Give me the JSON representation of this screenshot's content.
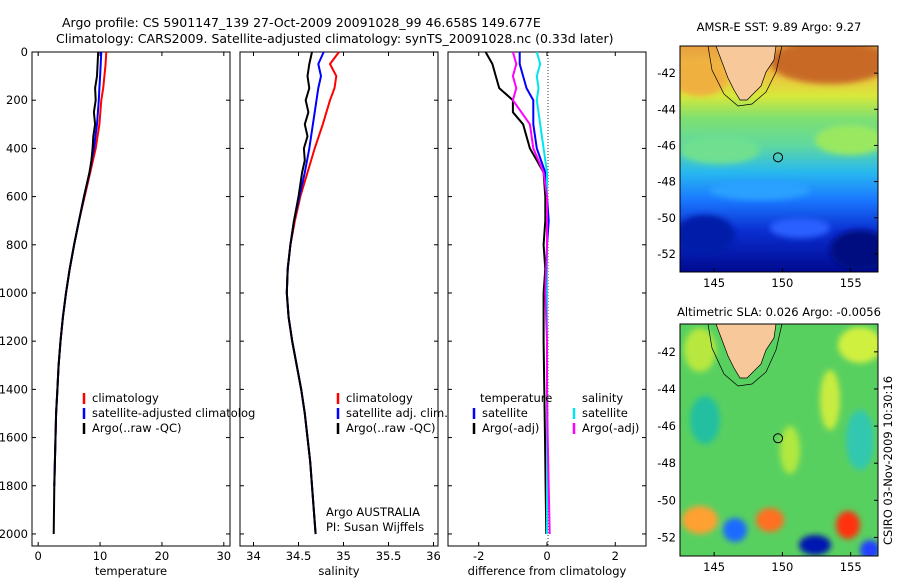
{
  "title_line1": "Argo profile: CS 5901147_139 27-Oct-2009 20091028_99 46.658S 149.677E",
  "title_line2": "Climatology: CARS2009. Satellite-adjusted climatology: synTS_20091028.nc (0.33d later)",
  "watermark": "CSIRO 03-Nov-2009 10:30:16",
  "colors": {
    "climatology": "#ff0000",
    "satellite": "#0000ff",
    "argo": "#000000",
    "sat_sal": "#00e5ee",
    "argo_sal": "#ff00ff"
  },
  "chart_data": [
    {
      "type": "line",
      "xlabel": "temperature",
      "xlim": [
        -1,
        31
      ],
      "ylim": [
        0,
        2050
      ],
      "xticks": [
        "0",
        "10",
        "20",
        "30"
      ],
      "yticks": [
        "0",
        "200",
        "400",
        "600",
        "800",
        "1000",
        "1200",
        "1400",
        "1600",
        "1800",
        "2000"
      ],
      "legend": [
        "climatology",
        "satellite-adjusted climatolog",
        "Argo(..raw -QC)"
      ],
      "series": [
        {
          "name": "climatology",
          "y": [
            0,
            50,
            100,
            150,
            200,
            300,
            400,
            500,
            600,
            700,
            800,
            900,
            1000,
            1100,
            1200,
            1300,
            1400,
            1500,
            1600,
            1700,
            1800
          ],
          "x": [
            11.0,
            10.9,
            10.7,
            10.5,
            10.2,
            9.9,
            9.3,
            8.4,
            7.5,
            6.6,
            5.8,
            5.1,
            4.5,
            4.0,
            3.6,
            3.3,
            3.1,
            2.9,
            2.8,
            2.7,
            2.6
          ]
        },
        {
          "name": "satellite-adjusted climatolog",
          "y": [
            0,
            50,
            100,
            150,
            200,
            300,
            400,
            500,
            600,
            700,
            800,
            900,
            1000,
            1100,
            1200,
            1300,
            1400,
            1500,
            1600,
            1700,
            1800
          ],
          "x": [
            10.2,
            10.1,
            10.0,
            9.9,
            9.8,
            9.5,
            9.0,
            8.3,
            7.4,
            6.6,
            5.8,
            5.1,
            4.5,
            4.0,
            3.6,
            3.3,
            3.1,
            2.9,
            2.8,
            2.7,
            2.6
          ]
        },
        {
          "name": "Argo(..raw -QC)",
          "y": [
            0,
            50,
            100,
            150,
            200,
            250,
            300,
            350,
            400,
            450,
            500,
            600,
            700,
            800,
            900,
            1000,
            1100,
            1200,
            1300,
            1400,
            1500,
            1600,
            1700,
            1800,
            1900,
            2000
          ],
          "x": [
            9.7,
            9.6,
            9.5,
            9.2,
            9.3,
            9.0,
            9.2,
            8.9,
            8.8,
            8.6,
            8.3,
            7.4,
            6.6,
            5.8,
            5.1,
            4.5,
            4.0,
            3.6,
            3.3,
            3.1,
            2.9,
            2.8,
            2.7,
            2.6,
            2.55,
            2.5
          ]
        }
      ]
    },
    {
      "type": "line",
      "xlabel": "salinity",
      "xlim": [
        33.85,
        36.05
      ],
      "ylim": [
        0,
        2050
      ],
      "xticks": [
        "34",
        "34.5",
        "35",
        "35.5",
        "36"
      ],
      "legend": [
        "climatology",
        "satellite adj. clim.",
        "Argo(..raw -QC)"
      ],
      "annotation": [
        "Argo AUSTRALIA",
        "PI: Susan Wijffels"
      ],
      "series": [
        {
          "name": "climatology",
          "y": [
            0,
            50,
            100,
            150,
            200,
            300,
            400,
            500,
            600,
            700,
            800,
            900,
            1000,
            1100,
            1200,
            1300,
            1400,
            1500,
            1600,
            1700,
            1800,
            1900,
            2000
          ],
          "x": [
            34.95,
            34.85,
            34.92,
            34.9,
            34.85,
            34.77,
            34.68,
            34.6,
            34.52,
            34.46,
            34.41,
            34.38,
            34.37,
            34.39,
            34.43,
            34.48,
            34.53,
            34.57,
            34.6,
            34.63,
            34.65,
            34.67,
            34.69
          ]
        },
        {
          "name": "satellite adj. clim.",
          "y": [
            0,
            50,
            100,
            150,
            200,
            300,
            400,
            500,
            600,
            700,
            800,
            900,
            1000,
            1100,
            1200,
            1300,
            1400,
            1500,
            1600,
            1700,
            1800,
            1900,
            2000
          ],
          "x": [
            34.78,
            34.72,
            34.75,
            34.72,
            34.7,
            34.66,
            34.62,
            34.57,
            34.51,
            34.45,
            34.41,
            34.38,
            34.37,
            34.39,
            34.43,
            34.48,
            34.53,
            34.57,
            34.6,
            34.63,
            34.65,
            34.67,
            34.69
          ]
        },
        {
          "name": "Argo(..raw -QC)",
          "y": [
            0,
            50,
            100,
            150,
            200,
            250,
            300,
            350,
            400,
            450,
            500,
            600,
            700,
            800,
            900,
            1000,
            1100,
            1200,
            1300,
            1400,
            1500,
            1600,
            1700,
            1800,
            1900,
            2000
          ],
          "x": [
            34.65,
            34.62,
            34.6,
            34.62,
            34.58,
            34.61,
            34.57,
            34.6,
            34.56,
            34.57,
            34.54,
            34.5,
            34.45,
            34.41,
            34.38,
            34.37,
            34.39,
            34.43,
            34.48,
            34.53,
            34.57,
            34.6,
            34.63,
            34.65,
            34.67,
            34.69
          ]
        }
      ]
    },
    {
      "type": "line",
      "xlabel": "difference from climatology",
      "xlim": [
        -2.9,
        2.9
      ],
      "ylim": [
        0,
        2050
      ],
      "xticks": [
        "-2",
        "0",
        "2"
      ],
      "legend_left": [
        "temperature",
        "satellite",
        "Argo(-adj)"
      ],
      "legend_right": [
        "salinity",
        "satellite",
        "Argo(-adj)"
      ],
      "series": [
        {
          "name": "temperature satellite",
          "y": [
            0,
            50,
            100,
            150,
            200,
            300,
            400,
            500,
            600,
            700,
            800,
            1000,
            1200,
            1400,
            1600,
            1800,
            2000
          ],
          "x": [
            -0.8,
            -0.8,
            -0.7,
            -0.6,
            -0.4,
            -0.4,
            -0.3,
            -0.05,
            0.0,
            0.05,
            0.0,
            0.0,
            0.0,
            0.0,
            0.0,
            0.0,
            0.0
          ]
        },
        {
          "name": "temperature Argo(-adj)",
          "y": [
            0,
            50,
            100,
            150,
            200,
            250,
            300,
            350,
            400,
            450,
            500,
            600,
            700,
            800,
            900,
            1000,
            1200,
            1400,
            1600,
            1800,
            2000
          ],
          "x": [
            -1.8,
            -1.6,
            -1.5,
            -1.4,
            -1.0,
            -1.0,
            -0.7,
            -0.6,
            -0.5,
            -0.3,
            -0.1,
            -0.05,
            -0.05,
            -0.1,
            -0.05,
            -0.1,
            -0.1,
            -0.08,
            -0.06,
            -0.04,
            -0.02
          ]
        },
        {
          "name": "salinity satellite",
          "y": [
            0,
            50,
            100,
            150,
            200,
            300,
            400,
            500,
            600,
            800,
            1000,
            1200,
            1400,
            1600,
            1800,
            2000
          ],
          "x": [
            -0.3,
            -0.2,
            -0.3,
            -0.25,
            -0.3,
            -0.2,
            -0.1,
            0.0,
            0.0,
            0.0,
            0.0,
            0.0,
            0.0,
            0.0,
            0.0,
            0.0
          ]
        },
        {
          "name": "salinity Argo(-adj)",
          "y": [
            0,
            50,
            100,
            150,
            200,
            300,
            400,
            500,
            600,
            800,
            1000,
            1200,
            1400,
            1600,
            1800,
            2000
          ],
          "x": [
            -1.0,
            -0.9,
            -1.0,
            -0.9,
            -1.0,
            -0.5,
            -0.4,
            -0.1,
            0.0,
            0.0,
            -0.05,
            0.0,
            0.0,
            0.02,
            0.05,
            0.08
          ]
        }
      ]
    },
    {
      "type": "heatmap",
      "title": "AMSR-E SST: 9.89 Argo: 9.27",
      "xticks": [
        "145",
        "150",
        "155"
      ],
      "yticks": [
        "-42",
        "-44",
        "-46",
        "-48",
        "-50",
        "-52"
      ],
      "xlim": [
        142.5,
        157
      ],
      "ylim": [
        -53,
        -40.5
      ],
      "marker": {
        "lon": 149.677,
        "lat": -46.658
      }
    },
    {
      "type": "heatmap",
      "title": "Altimetric SLA: 0.026 Argo: -0.0056",
      "xticks": [
        "145",
        "150",
        "155"
      ],
      "yticks": [
        "-42",
        "-44",
        "-46",
        "-48",
        "-50",
        "-52"
      ],
      "xlim": [
        142.5,
        157
      ],
      "ylim": [
        -53,
        -40.5
      ],
      "marker": {
        "lon": 149.677,
        "lat": -46.658
      }
    }
  ]
}
